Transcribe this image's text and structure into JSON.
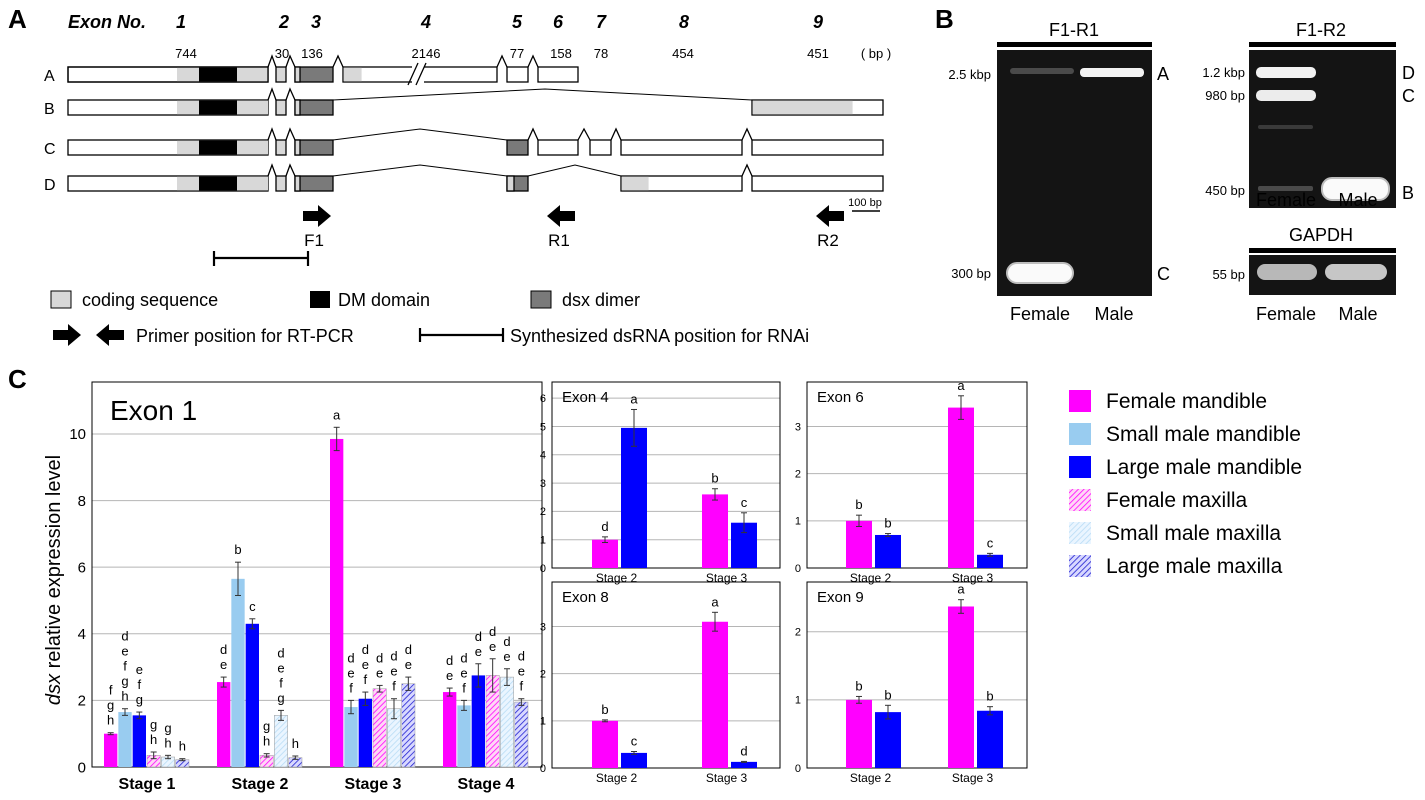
{
  "panel_letters": {
    "a": "A",
    "b": "B",
    "c": "C"
  },
  "exon_header": {
    "title": "Exon No.",
    "numbers": [
      "1",
      "2",
      "3",
      "4",
      "5",
      "6",
      "7",
      "8",
      "9"
    ],
    "sizes": [
      "744",
      "30",
      "136",
      "2146",
      "77",
      "158",
      "78",
      "454",
      "451"
    ],
    "unit": "( bp )"
  },
  "isoform_labels": [
    "A",
    "B",
    "C",
    "D"
  ],
  "scale_bar": "100 bp",
  "primers": {
    "f1": "F1",
    "r1": "R1",
    "r2": "R2"
  },
  "legend_a": {
    "coding": "coding sequence",
    "dm": "DM domain",
    "dimer": "dsx dimer",
    "primer": "Primer position for RT-PCR",
    "dsrna": "Synthesized dsRNA position for RNAi"
  },
  "colors": {
    "female": "#ff00ff",
    "small_male": "#99ccf0",
    "large_male": "#0000ff",
    "coding": "#d8d8d8",
    "dm": "#000000",
    "dimer": "#7a7a7a"
  },
  "gel": {
    "f1r1": {
      "title": "F1-R1",
      "markers": [
        "2.5 kbp",
        "300 bp"
      ],
      "bands": [
        "A",
        "C"
      ],
      "lanes": [
        "Female",
        "Male"
      ]
    },
    "f1r2": {
      "title": "F1-R2",
      "markers": [
        "1.2 kbp",
        "980 bp",
        "450 bp"
      ],
      "bands": [
        "D",
        "C",
        "B"
      ],
      "lanes": [
        "Female",
        "Male"
      ]
    },
    "gapdh": {
      "title": "GAPDH",
      "markers": [
        "55 bp"
      ],
      "lanes": [
        "Female",
        "Male"
      ]
    }
  },
  "chart_data": [
    {
      "type": "bar",
      "title": "Exon 1",
      "ylabel_italic": "dsx",
      "ylabel_rest": " relative expression level",
      "ylim": [
        0,
        11.5
      ],
      "yticks": [
        "0",
        "2",
        "4",
        "6",
        "8",
        "10"
      ],
      "categories": [
        "Stage 1",
        "Stage 2",
        "Stage 3",
        "Stage 4"
      ],
      "series": [
        {
          "name": "Female mandible",
          "values": [
            1.0,
            2.55,
            9.85,
            2.25
          ],
          "err": [
            0.03,
            0.15,
            0.35,
            0.12
          ]
        },
        {
          "name": "Small male mandible",
          "values": [
            1.65,
            5.65,
            1.8,
            1.85
          ],
          "err": [
            0.1,
            0.5,
            0.2,
            0.15
          ]
        },
        {
          "name": "Large male mandible",
          "values": [
            1.55,
            4.3,
            2.05,
            2.75
          ],
          "err": [
            0.1,
            0.15,
            0.2,
            0.35
          ]
        },
        {
          "name": "Female maxilla",
          "values": [
            0.35,
            0.35,
            2.35,
            2.75
          ],
          "err": [
            0.1,
            0.05,
            0.1,
            0.5
          ]
        },
        {
          "name": "Small male maxilla",
          "values": [
            0.3,
            1.55,
            1.75,
            2.7
          ],
          "err": [
            0.05,
            0.15,
            0.3,
            0.25
          ]
        },
        {
          "name": "Large male maxilla",
          "values": [
            0.22,
            0.28,
            2.5,
            1.95
          ],
          "err": [
            0.03,
            0.05,
            0.2,
            0.1
          ]
        }
      ],
      "letters": [
        [
          "fgh",
          "defgh",
          "efg",
          "gh",
          "gh",
          "h"
        ],
        [
          "de",
          "b",
          "c",
          "gh",
          "defg",
          "h"
        ],
        [
          "a",
          "def",
          "def",
          "de",
          "def",
          "de"
        ],
        [
          "de",
          "def",
          "de",
          "de",
          "de",
          "def"
        ]
      ],
      "legend": {
        "placement": "right"
      }
    },
    {
      "type": "bar",
      "title": "Exon 4",
      "ylim": [
        0,
        6.5
      ],
      "yticks": [
        "0",
        "1",
        "2",
        "3",
        "4",
        "5",
        "6"
      ],
      "categories": [
        "Stage 2",
        "Stage 3"
      ],
      "series": [
        {
          "name": "Female mandible",
          "values": [
            1.0,
            2.6
          ],
          "err": [
            0.1,
            0.2
          ]
        },
        {
          "name": "Large male mandible",
          "values": [
            4.95,
            1.6
          ],
          "err": [
            0.65,
            0.35
          ]
        }
      ],
      "letters": [
        [
          "d",
          "a"
        ],
        [
          "b",
          "c"
        ]
      ]
    },
    {
      "type": "bar",
      "title": "Exon 6",
      "ylim": [
        0,
        3.9
      ],
      "yticks": [
        "0",
        "1",
        "2",
        "3"
      ],
      "categories": [
        "Stage 2",
        "Stage 3"
      ],
      "series": [
        {
          "name": "Female mandible",
          "values": [
            1.0,
            3.4
          ],
          "err": [
            0.12,
            0.25
          ]
        },
        {
          "name": "Large male mandible",
          "values": [
            0.7,
            0.28
          ],
          "err": [
            0.03,
            0.03
          ]
        }
      ],
      "letters": [
        [
          "b",
          "b"
        ],
        [
          "a",
          "c"
        ]
      ]
    },
    {
      "type": "bar",
      "title": "Exon 8",
      "ylim": [
        0,
        3.9
      ],
      "yticks": [
        "0",
        "1",
        "2",
        "3"
      ],
      "categories": [
        "Stage 2",
        "Stage 3"
      ],
      "series": [
        {
          "name": "Female mandible",
          "values": [
            1.0,
            3.1
          ],
          "err": [
            0.02,
            0.2
          ]
        },
        {
          "name": "Large male mandible",
          "values": [
            0.32,
            0.13
          ],
          "err": [
            0.03,
            0.01
          ]
        }
      ],
      "letters": [
        [
          "b",
          "c"
        ],
        [
          "a",
          "d"
        ]
      ]
    },
    {
      "type": "bar",
      "title": "Exon 9",
      "ylim": [
        0,
        2.7
      ],
      "yticks": [
        "0",
        "1",
        "2"
      ],
      "categories": [
        "Stage 2",
        "Stage 3"
      ],
      "series": [
        {
          "name": "Female mandible",
          "values": [
            1.0,
            2.37
          ],
          "err": [
            0.05,
            0.1
          ]
        },
        {
          "name": "Large male mandible",
          "values": [
            0.82,
            0.84
          ],
          "err": [
            0.1,
            0.06
          ]
        }
      ],
      "letters": [
        [
          "b",
          "b"
        ],
        [
          "a",
          "b"
        ]
      ]
    }
  ]
}
